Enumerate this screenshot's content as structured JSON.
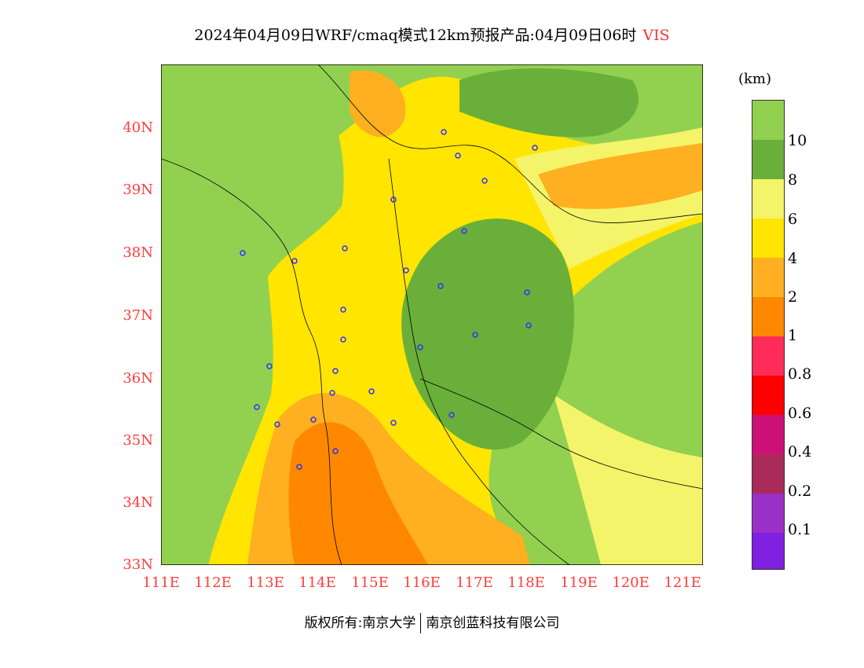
{
  "title": {
    "main": "2024年04月09日WRF/cmaq模式12km预报产品:04月09日06时",
    "variable": "VIS"
  },
  "legend": {
    "unit": "(km)",
    "labels": [
      "10",
      "8",
      "6",
      "4",
      "2",
      "1",
      "0.8",
      "0.6",
      "0.4",
      "0.2",
      "0.1"
    ],
    "colors": [
      "#92d050",
      "#6aaf3a",
      "#f4f46a",
      "#ffe500",
      "#ffb020",
      "#ff8800",
      "#ff2c5a",
      "#ff0000",
      "#cc1077",
      "#aa2b5a",
      "#9b30c8",
      "#8020e0"
    ]
  },
  "axes": {
    "lat_labels": [
      "40N",
      "39N",
      "38N",
      "37N",
      "36N",
      "35N",
      "34N",
      "33N"
    ],
    "lon_labels": [
      "111E",
      "112E",
      "113E",
      "114E",
      "115E",
      "116E",
      "117E",
      "118E",
      "119E",
      "120E",
      "121E"
    ]
  },
  "footer": {
    "left": "版权所有:南京大学",
    "right": "南京创蓝科技有限公司"
  }
}
